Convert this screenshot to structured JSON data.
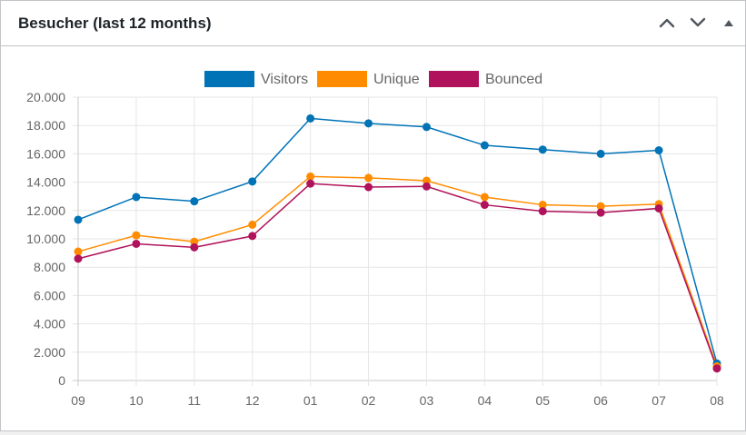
{
  "widget": {
    "title": "Besucher (last 12 months)",
    "controls": {
      "move_up_icon": "chevron-up-icon",
      "move_down_icon": "chevron-down-icon",
      "toggle_icon": "triangle-up-icon"
    }
  },
  "chart_data": {
    "type": "line",
    "categories": [
      "09",
      "10",
      "11",
      "12",
      "01",
      "02",
      "03",
      "04",
      "05",
      "06",
      "07",
      "08"
    ],
    "ylim": [
      0,
      20000
    ],
    "yticks": [
      "0",
      "2.000",
      "4.000",
      "6.000",
      "8.000",
      "10.000",
      "12.000",
      "14.000",
      "16.000",
      "18.000",
      "20.000"
    ],
    "grid": true,
    "legend_position": "top",
    "series": [
      {
        "name": "Visitors",
        "color": "#0073b7",
        "values": [
          11350,
          12950,
          12650,
          14050,
          18500,
          18150,
          17900,
          16600,
          16300,
          16000,
          16250,
          1200
        ]
      },
      {
        "name": "Unique",
        "color": "#ff8c00",
        "values": [
          9100,
          10250,
          9800,
          11000,
          14400,
          14300,
          14100,
          12950,
          12400,
          12300,
          12450,
          1000
        ]
      },
      {
        "name": "Bounced",
        "color": "#b0125b",
        "values": [
          8600,
          9650,
          9400,
          10200,
          13900,
          13650,
          13700,
          12400,
          11950,
          11850,
          12150,
          850
        ]
      }
    ]
  }
}
